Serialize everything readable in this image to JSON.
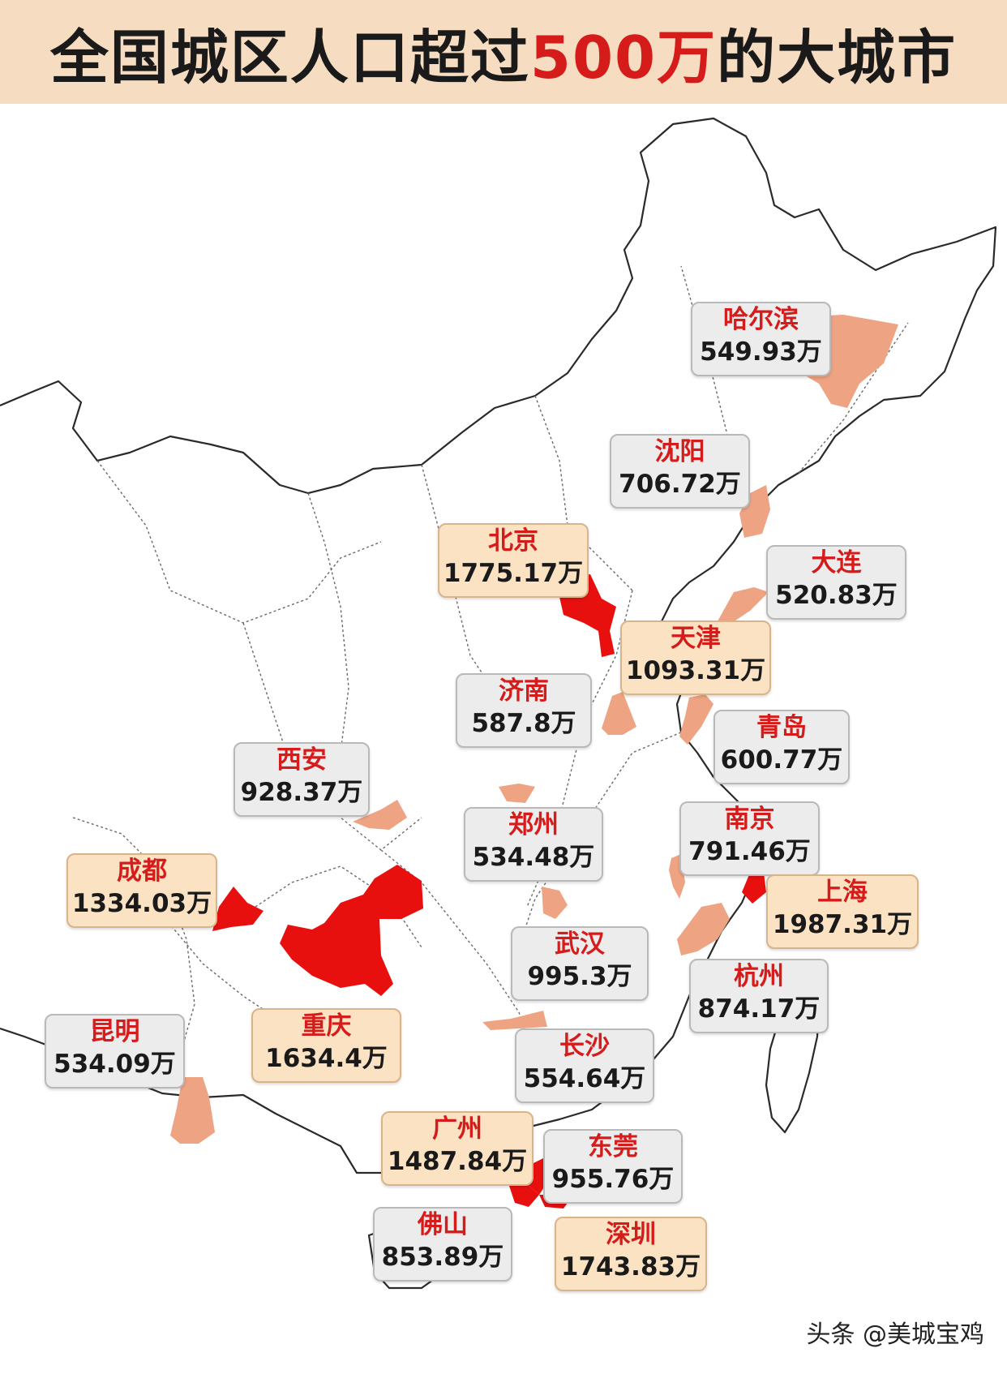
{
  "title": {
    "prefix": "全国城区人口超过",
    "highlight": "500万",
    "suffix": "的大城市"
  },
  "colors": {
    "title_bg": "#f6dcc0",
    "highlight_red": "#d61b1b",
    "top_city_fill": "#e8100f",
    "other_city_fill": "#eea382",
    "label_bg_top": "#fbe2c3",
    "label_bg_other": "#ececec"
  },
  "cities": [
    {
      "name": "哈尔滨",
      "population": "549.93万",
      "tier": "normal"
    },
    {
      "name": "沈阳",
      "population": "706.72万",
      "tier": "normal"
    },
    {
      "name": "北京",
      "population": "1775.17万",
      "tier": "high"
    },
    {
      "name": "大连",
      "population": "520.83万",
      "tier": "normal"
    },
    {
      "name": "天津",
      "population": "1093.31万",
      "tier": "high"
    },
    {
      "name": "济南",
      "population": "587.8万",
      "tier": "normal"
    },
    {
      "name": "青岛",
      "population": "600.77万",
      "tier": "normal"
    },
    {
      "name": "西安",
      "population": "928.37万",
      "tier": "normal"
    },
    {
      "name": "郑州",
      "population": "534.48万",
      "tier": "normal"
    },
    {
      "name": "南京",
      "population": "791.46万",
      "tier": "normal"
    },
    {
      "name": "成都",
      "population": "1334.03万",
      "tier": "high"
    },
    {
      "name": "上海",
      "population": "1987.31万",
      "tier": "high"
    },
    {
      "name": "武汉",
      "population": "995.3万",
      "tier": "normal"
    },
    {
      "name": "杭州",
      "population": "874.17万",
      "tier": "normal"
    },
    {
      "name": "重庆",
      "population": "1634.4万",
      "tier": "high"
    },
    {
      "name": "昆明",
      "population": "534.09万",
      "tier": "normal"
    },
    {
      "name": "长沙",
      "population": "554.64万",
      "tier": "normal"
    },
    {
      "name": "广州",
      "population": "1487.84万",
      "tier": "high"
    },
    {
      "name": "东莞",
      "population": "955.76万",
      "tier": "normal"
    },
    {
      "name": "佛山",
      "population": "853.89万",
      "tier": "normal"
    },
    {
      "name": "深圳",
      "population": "1743.83万",
      "tier": "high"
    }
  ],
  "watermark": "头条 @美城宝鸡"
}
